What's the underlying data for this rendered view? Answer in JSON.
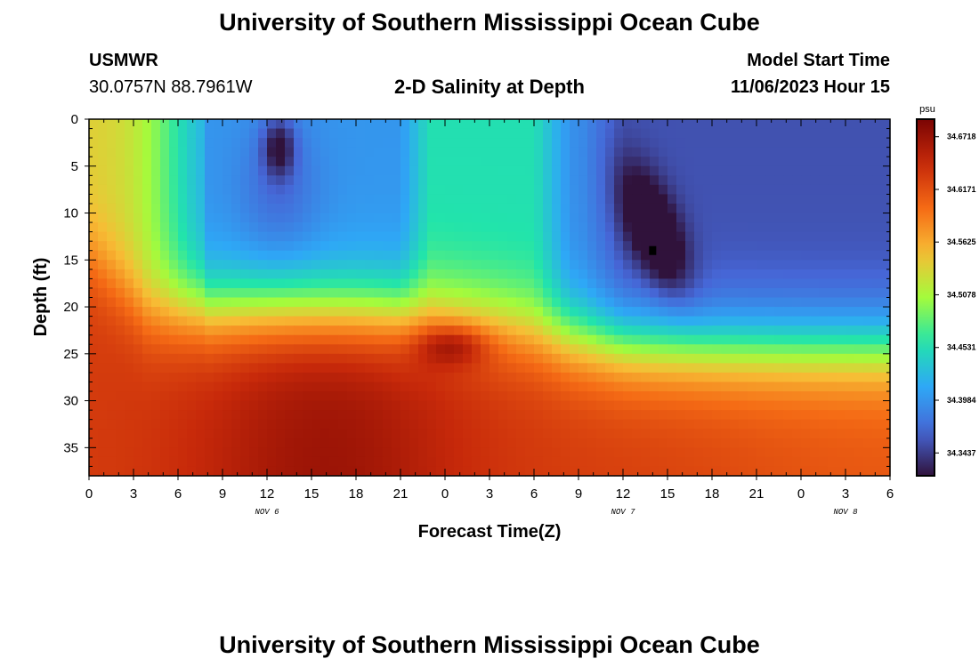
{
  "header": {
    "title": "University of Southern Mississippi Ocean Cube",
    "station": "USMWR",
    "coords": "30.0757N  88.7961W",
    "subtitle": "2-D Salinity at Depth",
    "model_label": "Model Start Time",
    "model_time": "11/06/2023 Hour 15"
  },
  "footer": {
    "title": "University of Southern Mississippi Ocean Cube"
  },
  "chart_data": {
    "type": "heatmap",
    "xlabel": "Forecast Time(Z)",
    "ylabel": "Depth (ft)",
    "x_ticks": [
      "0",
      "3",
      "6",
      "9",
      "12",
      "15",
      "18",
      "21",
      "0",
      "3",
      "6",
      "9",
      "12",
      "15",
      "18",
      "21",
      "0",
      "3",
      "6"
    ],
    "date_labels": [
      {
        "label": "NOV 6",
        "hour": 12
      },
      {
        "label": "NOV 7",
        "hour": 36
      },
      {
        "label": "NOV 8",
        "hour": 51
      }
    ],
    "y_ticks": [
      0,
      5,
      10,
      15,
      20,
      25,
      30,
      35
    ],
    "xlim": [
      0,
      54
    ],
    "ylim": [
      0,
      38
    ],
    "colorbar": {
      "unit": "psu",
      "labels": [
        "34.6718",
        "34.6171",
        "34.5625",
        "34.5078",
        "34.4531",
        "34.3984",
        "34.3437"
      ],
      "min": 34.32,
      "max": 34.69
    },
    "grid_resolution": {
      "time_steps": 90,
      "depth_steps": 38
    },
    "features": [
      {
        "name": "surface low-salinity core",
        "hour": 13,
        "depth_ft": 3,
        "value": 34.33
      },
      {
        "name": "subsurface low-salinity core",
        "hour": 38,
        "depth_ft": 14,
        "value": 34.32
      },
      {
        "name": "bottom high-salinity layer",
        "depth_ft": 35,
        "value": 34.67
      },
      {
        "name": "early surface high-salinity water",
        "hour": 0,
        "depth_ft": 0,
        "value": 34.54
      }
    ],
    "colors": [
      "#30123b",
      "#4666d6",
      "#2ea8f6",
      "#22e4ab",
      "#a4fb3c",
      "#f7bd35",
      "#f56b15",
      "#c7290a",
      "#7a0403"
    ]
  }
}
